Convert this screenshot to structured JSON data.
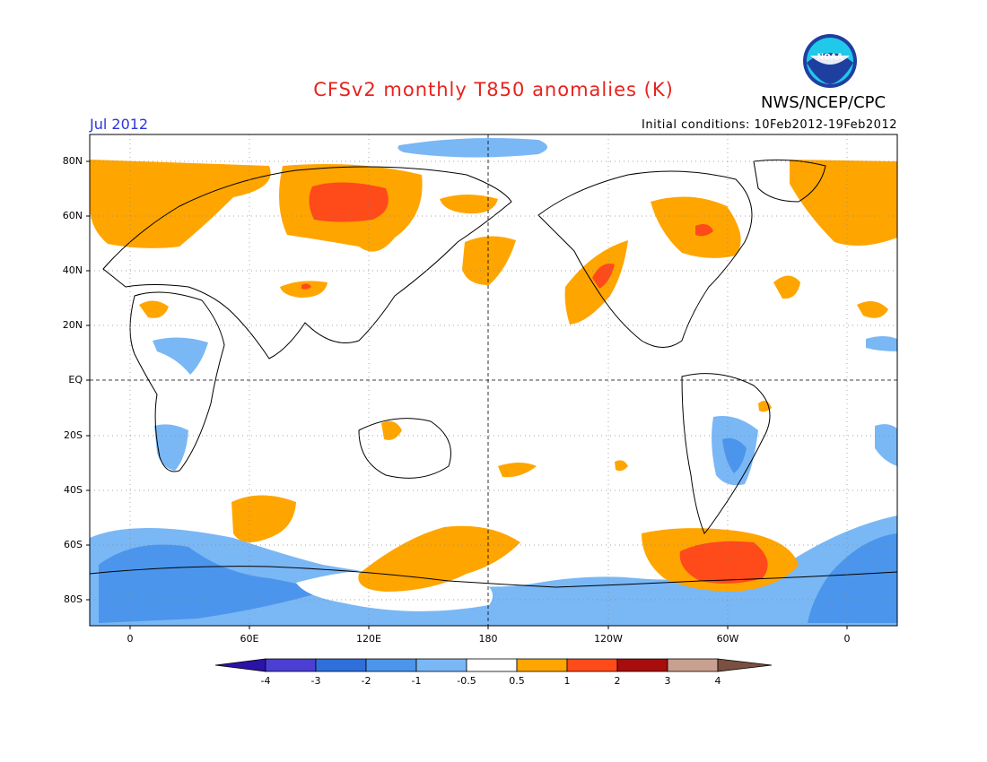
{
  "header": {
    "title": "CFSv2 monthly T850 anomalies (K)",
    "organization": "NWS/NCEP/CPC",
    "logo_text": "NOAA",
    "valid_month": "Jul 2012",
    "initial_conditions": "Initial conditions: 10Feb2012-19Feb2012"
  },
  "axes": {
    "lat_labels": [
      "80N",
      "60N",
      "40N",
      "20N",
      "EQ",
      "20S",
      "40S",
      "60S",
      "80S"
    ],
    "lon_labels": [
      "0",
      "60E",
      "120E",
      "180",
      "120W",
      "60W",
      "0"
    ]
  },
  "colorbar": {
    "labels": [
      "-4",
      "-3",
      "-2",
      "-1",
      "-0.5",
      "0.5",
      "1",
      "2",
      "3",
      "4"
    ],
    "colors": [
      "#2a14a8",
      "#4a3fd2",
      "#2f6fdc",
      "#4b95ec",
      "#7ab7f5",
      "#ffffff",
      "#ffa500",
      "#ff4a1a",
      "#a80d0d",
      "#c9a090",
      "#7a5040"
    ]
  },
  "map_colors": {
    "weak_warm": "#ffa500",
    "strong_warm": "#ff4a1a",
    "very_strong_warm": "#e0221a",
    "weak_cold": "#7ab7f5",
    "cold": "#4b95ec"
  }
}
